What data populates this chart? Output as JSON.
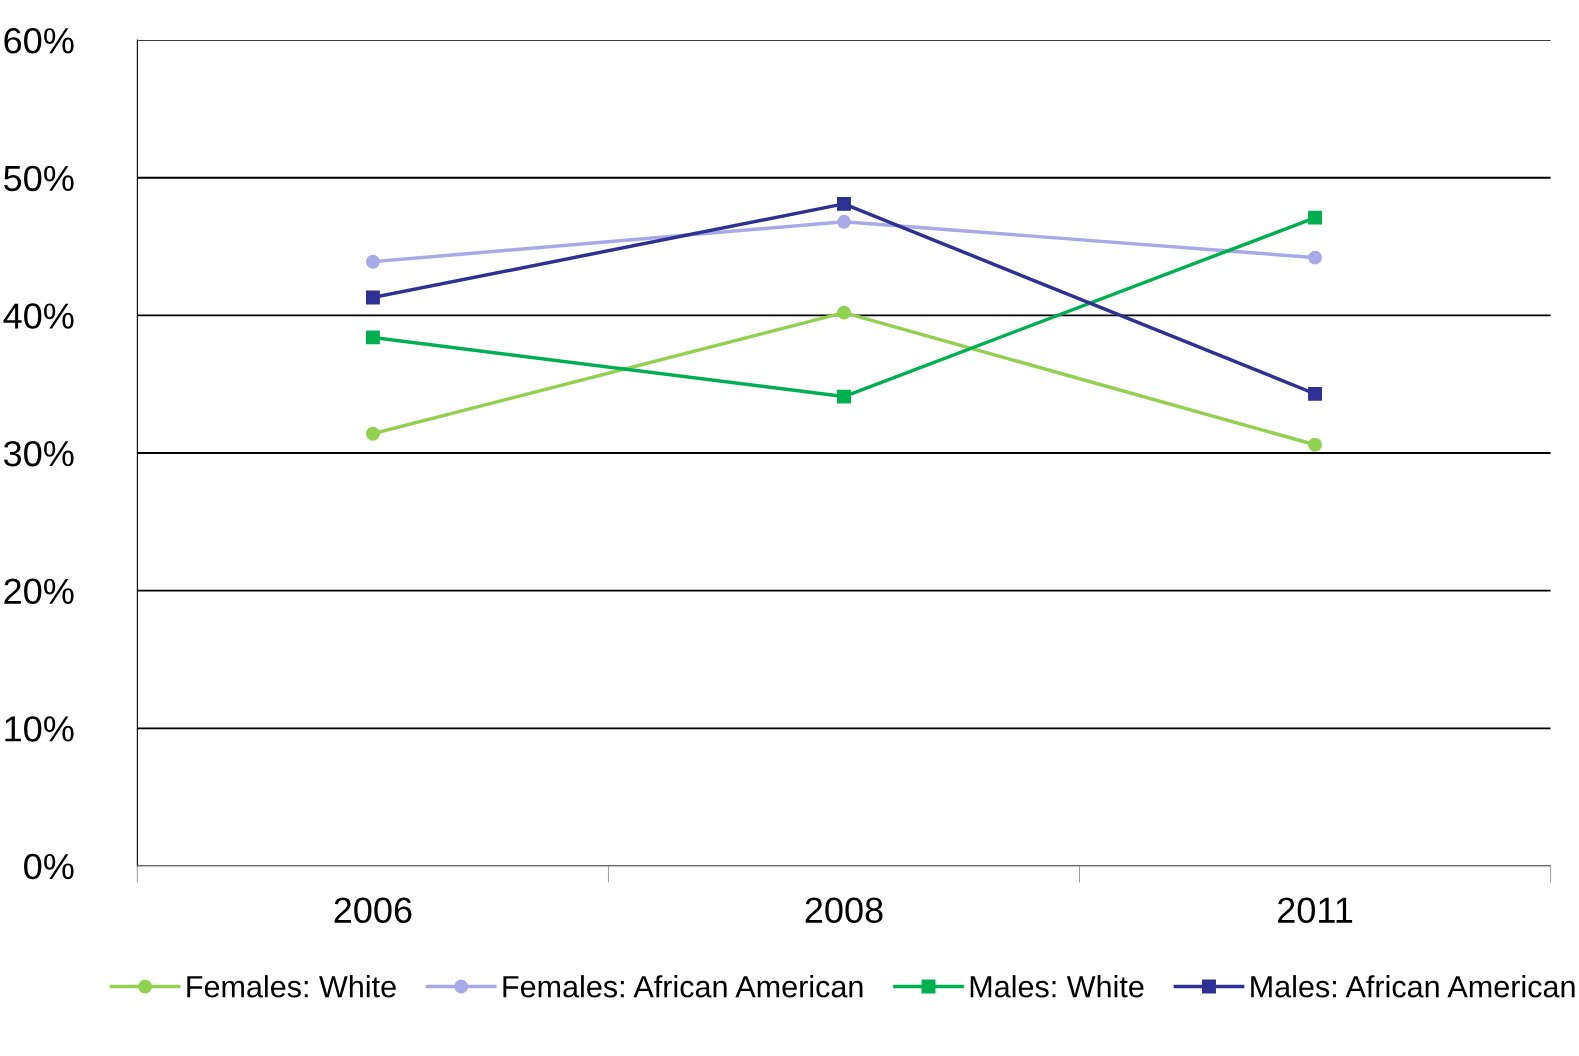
{
  "chart_data": {
    "type": "line",
    "categories": [
      "2006",
      "2008",
      "2011"
    ],
    "series": [
      {
        "name": "Females: White",
        "color": "#92d050",
        "marker": "circle",
        "values": [
          31.4,
          40.2,
          30.6
        ]
      },
      {
        "name": "Females: African American",
        "color": "#a9a9e8",
        "marker": "circle",
        "values": [
          43.9,
          46.8,
          44.2
        ]
      },
      {
        "name": "Males: White",
        "color": "#00b050",
        "marker": "square",
        "values": [
          38.4,
          34.1,
          47.1
        ]
      },
      {
        "name": "Males: African American",
        "color": "#2e3192",
        "marker": "square",
        "values": [
          41.3,
          48.1,
          34.3
        ]
      }
    ],
    "ylim": [
      0,
      60
    ],
    "yticks": [
      {
        "value": 0,
        "label": "0%"
      },
      {
        "value": 10,
        "label": "10%"
      },
      {
        "value": 20,
        "label": "20%"
      },
      {
        "value": 30,
        "label": "30%"
      },
      {
        "value": 40,
        "label": "40%"
      },
      {
        "value": 50,
        "label": "50%"
      },
      {
        "value": 60,
        "label": "60%"
      }
    ],
    "grid": "y",
    "legend": "bottom",
    "line_style": "solid"
  }
}
